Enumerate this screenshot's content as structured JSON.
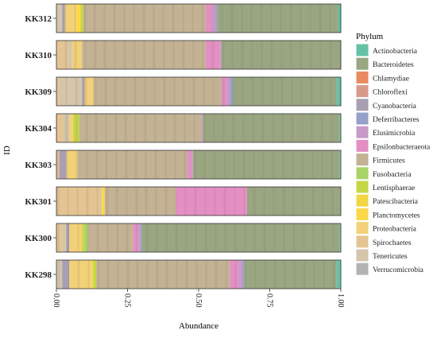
{
  "chart_data": {
    "type": "bar",
    "orientation": "horizontal",
    "stacked": true,
    "xlabel": "Abundance",
    "ylabel": "ID",
    "xlim": [
      0,
      1
    ],
    "xticks": [
      "0.00",
      "0.25",
      "0.50",
      "0.75",
      "1.00"
    ],
    "legend_title": "Phylum",
    "legend_position": "right",
    "phyla": [
      {
        "name": "Actinobacteria",
        "color": "#66c2a5"
      },
      {
        "name": "Bacteroidetes",
        "color": "#9aa682"
      },
      {
        "name": "Chlamydiae",
        "color": "#e98a62"
      },
      {
        "name": "Chloroflexi",
        "color": "#d9998a"
      },
      {
        "name": "Cyanobacteria",
        "color": "#a89fb2"
      },
      {
        "name": "Deferribacteres",
        "color": "#97a0c9"
      },
      {
        "name": "Elusimicrobia",
        "color": "#c69bc7"
      },
      {
        "name": "Epsilonbacteraeota",
        "color": "#e48fc4"
      },
      {
        "name": "Firmicutes",
        "color": "#c4b295"
      },
      {
        "name": "Fusobacteria",
        "color": "#a8d365"
      },
      {
        "name": "Lentisphaerae",
        "color": "#c4d746"
      },
      {
        "name": "Patescibacteria",
        "color": "#f2d745"
      },
      {
        "name": "Planctomycetes",
        "color": "#fbd849"
      },
      {
        "name": "Proteobacteria",
        "color": "#f2d178"
      },
      {
        "name": "Spirochaetes",
        "color": "#e5c494"
      },
      {
        "name": "Tenericutes",
        "color": "#d4c5ab"
      },
      {
        "name": "Verrucomicrobia",
        "color": "#b3b3b3"
      }
    ],
    "samples": [
      {
        "id": "KK312",
        "values": {
          "Cyanobacteria": 0.01,
          "Tenericutes": 0.02,
          "Proteobacteria": 0.04,
          "Planctomycetes": 0.015,
          "Lentisphaerae": 0.01,
          "Firmicutes": 0.43,
          "Epsilonbacteraeota": 0.025,
          "Elusimicrobia": 0.01,
          "Deferribacteres": 0.005,
          "Bacteroidetes": 0.425,
          "Actinobacteria": 0.01
        }
      },
      {
        "id": "KK310",
        "values": {
          "Tenericutes": 0.015,
          "Spirochaetes": 0.04,
          "Proteobacteria": 0.035,
          "Firmicutes": 0.435,
          "Epsilonbacteraeota": 0.05,
          "Elusimicrobia": 0.005,
          "Bacteroidetes": 0.42
        }
      },
      {
        "id": "KK309",
        "values": {
          "Tenericutes": 0.08,
          "Spirochaetes": 0.01,
          "Proteobacteria": 0.03,
          "Firmicutes": 0.45,
          "Epsilonbacteraeota": 0.02,
          "Elusimicrobia": 0.01,
          "Deferribacteres": 0.01,
          "Cyanobacteria": 0.01,
          "Bacteroidetes": 0.365,
          "Actinobacteria": 0.015
        }
      },
      {
        "id": "KK304",
        "values": {
          "Tenericutes": 0.02,
          "Spirochaetes": 0.025,
          "Proteobacteria": 0.015,
          "Lentisphaerae": 0.02,
          "Firmicutes": 0.43,
          "Elusimicrobia": 0.005,
          "Bacteroidetes": 0.48,
          "Actinobacteria": 0.005
        }
      },
      {
        "id": "KK303",
        "values": {
          "Cyanobacteria": 0.025,
          "Spirochaetes": 0.01,
          "Proteobacteria": 0.04,
          "Firmicutes": 0.385,
          "Epsilonbacteraeota": 0.015,
          "Elusimicrobia": 0.005,
          "Bacteroidetes": 0.515,
          "Actinobacteria": 0.005
        }
      },
      {
        "id": "KK301",
        "values": {
          "Spirochaetes": 0.16,
          "Planctomycetes": 0.01,
          "Firmicutes": 0.25,
          "Epsilonbacteraeota": 0.25,
          "Bacteroidetes": 0.33
        }
      },
      {
        "id": "KK300",
        "values": {
          "Tenericutes": 0.015,
          "Spirochaetes": 0.02,
          "Proteobacteria": 0.045,
          "Fusobacteria": 0.01,
          "Lentisphaerae": 0.01,
          "Firmicutes": 0.16,
          "Epsilonbacteraeota": 0.02,
          "Elusimicrobia": 0.005,
          "Cyanobacteria": 0.01,
          "Deferribacteres": 0.005,
          "Bacteroidetes": 0.695,
          "Actinobacteria": 0.005
        }
      },
      {
        "id": "KK298",
        "values": {
          "Cyanobacteria": 0.025,
          "Tenericutes": 0.02,
          "Proteobacteria": 0.08,
          "Patescibacteria": 0.005,
          "Lentisphaerae": 0.01,
          "Firmicutes": 0.47,
          "Epsilonbacteraeota": 0.03,
          "Elusimicrobia": 0.015,
          "Deferribacteres": 0.005,
          "Bacteroidetes": 0.325,
          "Actinobacteria": 0.015
        }
      }
    ]
  }
}
